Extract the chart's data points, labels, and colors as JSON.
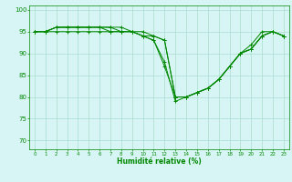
{
  "xlabel": "Humidité relative (%)",
  "background_color": "#d8f5f5",
  "grid_color": "#aaddcc",
  "line_color": "#008800",
  "ylim": [
    68,
    101
  ],
  "yticks": [
    70,
    75,
    80,
    85,
    90,
    95,
    100
  ],
  "xlim": [
    -0.5,
    23.5
  ],
  "xticks": [
    0,
    1,
    2,
    3,
    4,
    5,
    6,
    7,
    8,
    9,
    10,
    11,
    12,
    13,
    14,
    15,
    16,
    17,
    18,
    19,
    20,
    21,
    22,
    23
  ],
  "series": [
    [
      95,
      95,
      96,
      96,
      96,
      96,
      96,
      96,
      96,
      95,
      94,
      93,
      88,
      79,
      80,
      81,
      82,
      84,
      87,
      90,
      91,
      94,
      95,
      94
    ],
    [
      95,
      95,
      96,
      96,
      96,
      96,
      96,
      96,
      95,
      95,
      94,
      93,
      87,
      80,
      80,
      81,
      82,
      84,
      87,
      90,
      92,
      95,
      95,
      94
    ],
    [
      95,
      95,
      96,
      96,
      96,
      96,
      96,
      95,
      95,
      95,
      94,
      94,
      93,
      80,
      80,
      81,
      82,
      84,
      87,
      90,
      91,
      94,
      95,
      94
    ],
    [
      95,
      95,
      95,
      95,
      95,
      95,
      95,
      95,
      95,
      95,
      95,
      94,
      93,
      80,
      80,
      81,
      82,
      84,
      87,
      90,
      91,
      94,
      95,
      94
    ]
  ]
}
